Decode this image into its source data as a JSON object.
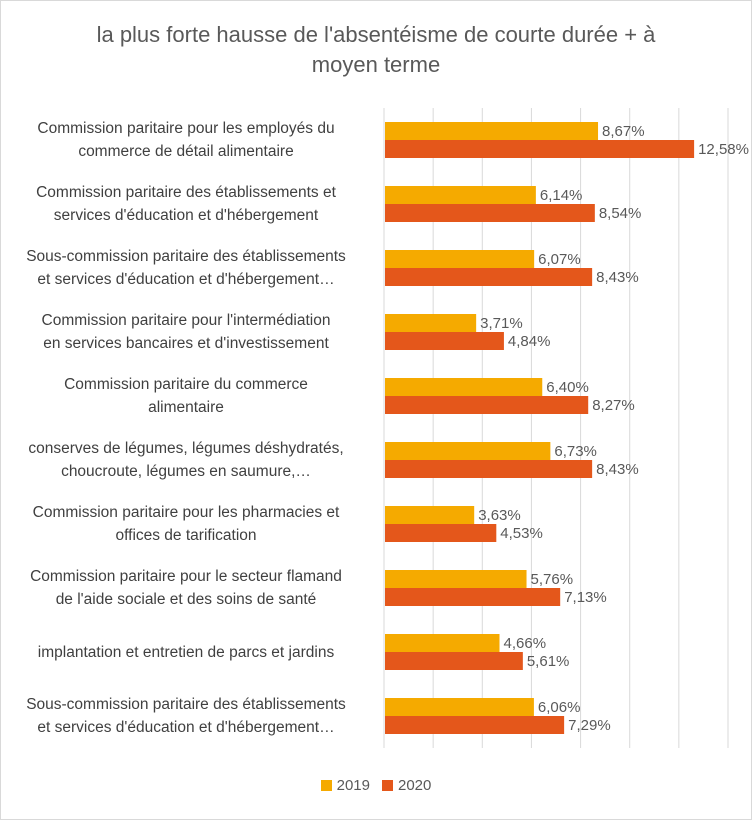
{
  "colors": {
    "2019": "#f5aa00",
    "2020": "#e4571b",
    "grid": "#d9d9d9",
    "label": "#595959"
  },
  "chart_data": {
    "type": "bar",
    "orientation": "horizontal",
    "title": "la plus forte hausse de l'absentéisme de courte durée + à\nmoyen terme",
    "categories": [
      "Commission paritaire pour les employés du\ncommerce de détail alimentaire",
      "Commission paritaire des établissements et\nservices d'éducation et d'hébergement",
      "Sous-commission paritaire des établissements\net services d'éducation et d'hébergement…",
      "Commission paritaire pour l'intermédiation\nen services bancaires et d'investissement",
      "Commission paritaire du commerce\nalimentaire",
      "conserves de légumes, légumes déshydratés,\nchoucroute, légumes en saumure,…",
      "Commission paritaire pour les pharmacies et\noffices de tarification",
      "Commission paritaire pour le secteur flamand\nde l'aide sociale et des soins de santé",
      "implantation et entretien de parcs et jardins",
      "Sous-commission paritaire des établissements\net services d'éducation et d'hébergement…"
    ],
    "series": [
      {
        "name": "2019",
        "values": [
          8.67,
          6.14,
          6.07,
          3.71,
          6.4,
          6.73,
          3.63,
          5.76,
          4.66,
          6.06
        ],
        "labels": [
          "8,67%",
          "6,14%",
          "6,07%",
          "3,71%",
          "6,40%",
          "6,73%",
          "3,63%",
          "5,76%",
          "4,66%",
          "6,06%"
        ]
      },
      {
        "name": "2020",
        "values": [
          12.58,
          8.54,
          8.43,
          4.84,
          8.27,
          8.43,
          4.53,
          7.13,
          5.61,
          7.29
        ],
        "labels": [
          "12,58%",
          "8,54%",
          "8,43%",
          "4,84%",
          "8,27%",
          "8,43%",
          "4,53%",
          "7,13%",
          "5,61%",
          "7,29%"
        ]
      }
    ],
    "xlim": [
      0,
      14
    ],
    "grid": true,
    "legend_position": "bottom"
  }
}
